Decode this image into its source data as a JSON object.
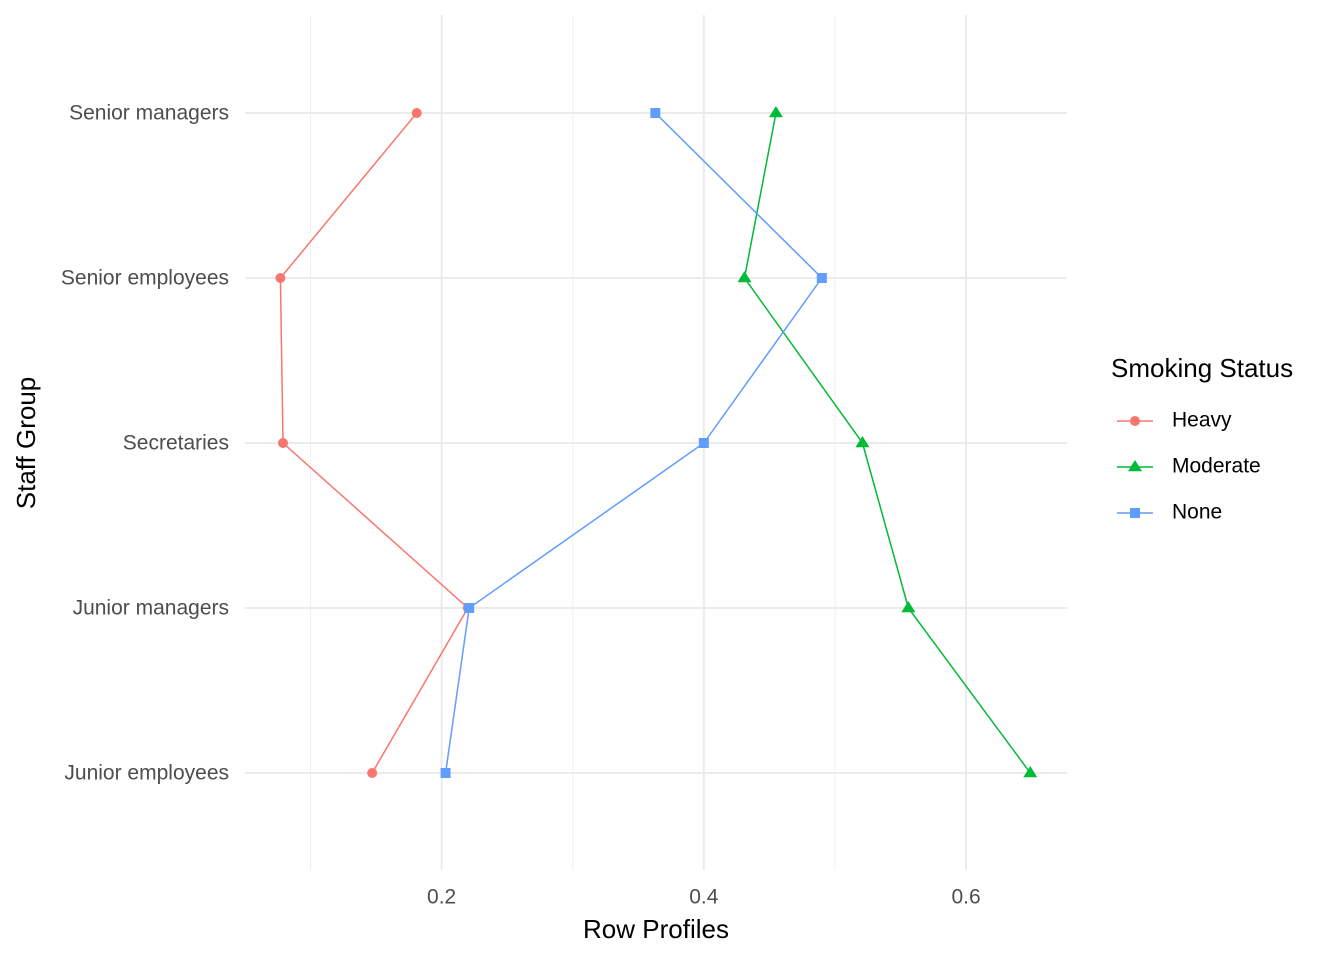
{
  "chart_data": {
    "type": "line",
    "x_label": "Row Profiles",
    "y_label": "Staff Group",
    "legend_title": "Smoking Status",
    "legend_position": "right",
    "grid": true,
    "categories": [
      "Senior managers",
      "Senior employees",
      "Secretaries",
      "Junior managers",
      "Junior employees"
    ],
    "xlim": [
      0.05,
      0.677
    ],
    "xticks": [
      0.2,
      0.4,
      0.6
    ],
    "series": [
      {
        "name": "Heavy",
        "color": "#F8766D",
        "marker": "circle",
        "values": [
          0.181,
          0.077,
          0.079,
          0.22,
          0.147
        ]
      },
      {
        "name": "Moderate",
        "color": "#00BA38",
        "marker": "triangle",
        "values": [
          0.455,
          0.431,
          0.521,
          0.556,
          0.649
        ]
      },
      {
        "name": "None",
        "color": "#619CFF",
        "marker": "square",
        "values": [
          0.363,
          0.49,
          0.4,
          0.221,
          0.203
        ]
      }
    ]
  }
}
